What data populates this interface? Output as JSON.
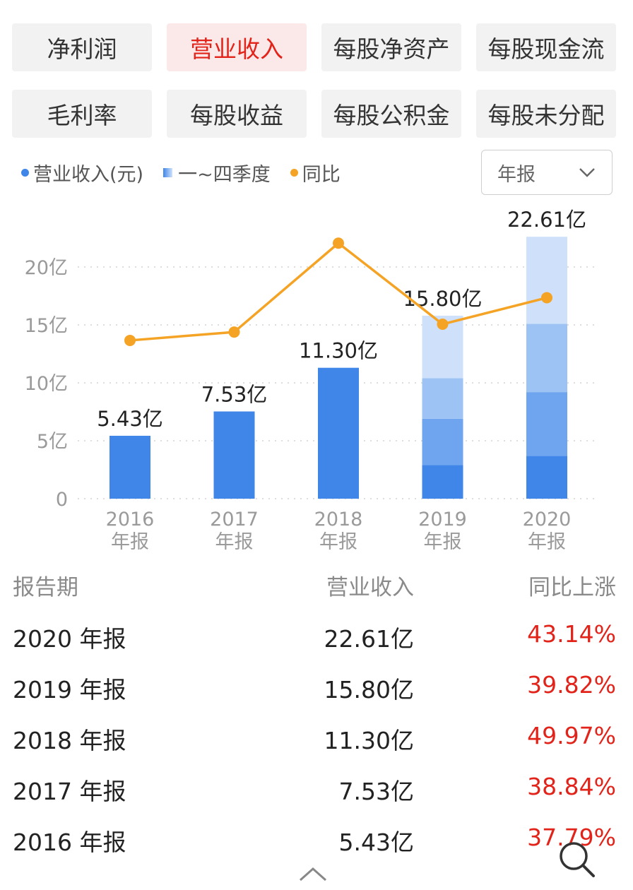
{
  "tabs": [
    {
      "label": "净利润",
      "active": false
    },
    {
      "label": "营业收入",
      "active": true
    },
    {
      "label": "每股净资产",
      "active": false
    },
    {
      "label": "每股现金流",
      "active": false
    },
    {
      "label": "毛利率",
      "active": false
    },
    {
      "label": "每股收益",
      "active": false
    },
    {
      "label": "每股公积金",
      "active": false
    },
    {
      "label": "每股未分配",
      "active": false
    }
  ],
  "legend": {
    "revenue": "营业收入(元)",
    "quarters": "一~四季度",
    "yoy": "同比"
  },
  "select": {
    "value": "年报"
  },
  "colors": {
    "accent_red": "#e2231a",
    "bar_blue": "#3f86e8",
    "line_orange": "#f5a325"
  },
  "chart_data": {
    "type": "bar",
    "categories": [
      "2016\n年报",
      "2017\n年报",
      "2018\n年报",
      "2019\n年报",
      "2020\n年报"
    ],
    "category_years": [
      "2016",
      "2017",
      "2018",
      "2019",
      "2020"
    ],
    "category_suffix": "年报",
    "values": [
      5.43,
      7.53,
      11.3,
      15.8,
      22.61
    ],
    "value_labels": [
      "5.43亿",
      "7.53亿",
      "11.30亿",
      "15.80亿",
      "22.61亿"
    ],
    "quarterly_cumulative": [
      null,
      null,
      null,
      [
        2.9,
        6.9,
        10.4,
        15.8
      ],
      [
        3.7,
        9.2,
        15.1,
        22.61
      ]
    ],
    "yoy_percent": [
      37.79,
      38.84,
      49.97,
      39.82,
      43.14
    ],
    "ylim": [
      0,
      25
    ],
    "yticks": [
      0,
      5,
      10,
      15,
      20
    ],
    "ytick_labels": [
      "0",
      "5亿",
      "10亿",
      "15亿",
      "20亿"
    ],
    "grid": true,
    "legend_position": "top-left"
  },
  "table": {
    "headers": [
      "报告期",
      "营业收入",
      "同比上涨"
    ],
    "rows": [
      {
        "period": "2020 年报",
        "revenue": "22.61亿",
        "yoy": "43.14%"
      },
      {
        "period": "2019 年报",
        "revenue": "15.80亿",
        "yoy": "39.82%"
      },
      {
        "period": "2018 年报",
        "revenue": "11.30亿",
        "yoy": "49.97%"
      },
      {
        "period": "2017 年报",
        "revenue": "7.53亿",
        "yoy": "38.84%"
      },
      {
        "period": "2016 年报",
        "revenue": "5.43亿",
        "yoy": "37.79%"
      }
    ]
  },
  "icons": {
    "scroll_up": "chevron-up-icon",
    "search": "search-icon",
    "dropdown": "chevron-down-icon"
  }
}
